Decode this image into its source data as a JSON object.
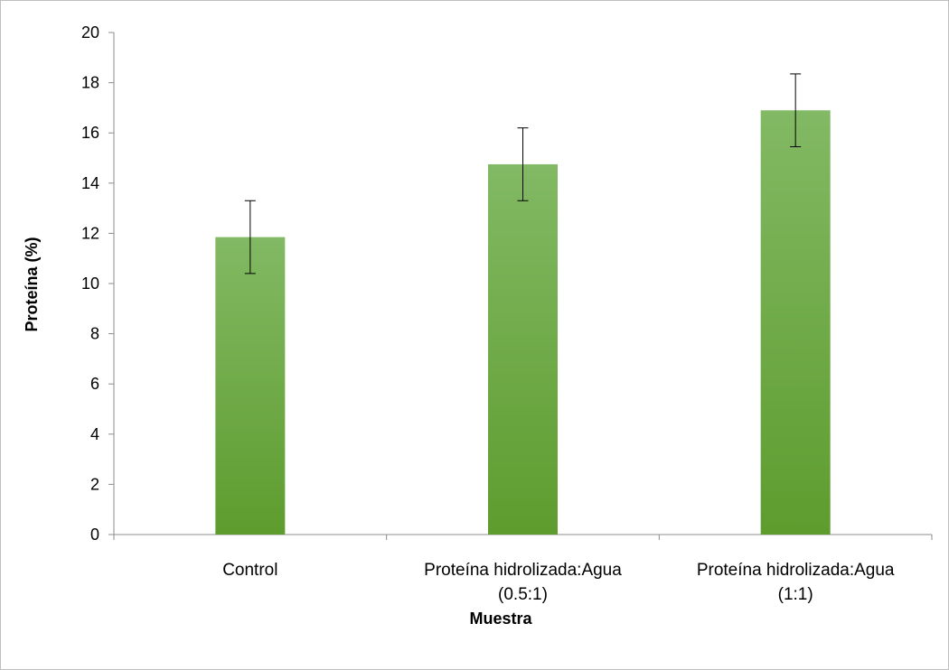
{
  "chart_data": {
    "type": "bar",
    "title": "",
    "xlabel": "Muestra",
    "ylabel": "Proteína (%)",
    "ylim": [
      0,
      20
    ],
    "yticks": [
      0,
      2,
      4,
      6,
      8,
      10,
      12,
      14,
      16,
      18,
      20
    ],
    "grid": false,
    "legend": "none",
    "categories": [
      [
        "Control"
      ],
      [
        "Proteína hidrolizada:Agua",
        "(0.5:1)"
      ],
      [
        "Proteína hidrolizada:Agua",
        "(1:1)"
      ]
    ],
    "series": [
      {
        "values": [
          11.85,
          14.75,
          16.9
        ],
        "error": [
          1.45,
          1.45,
          1.45
        ],
        "color_top": "#82b964",
        "color_bottom": "#5e9c2e"
      }
    ]
  }
}
